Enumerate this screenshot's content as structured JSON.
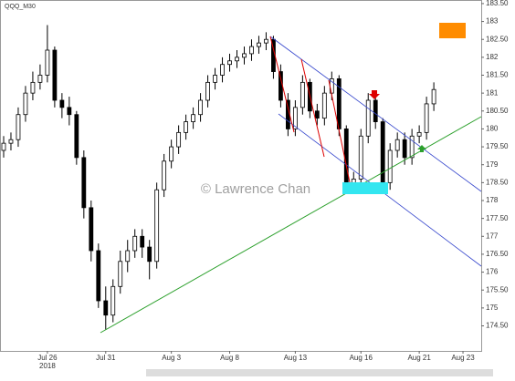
{
  "chart_data": {
    "type": "candlestick",
    "symbol": "QQQ_M30",
    "watermark": "© Lawrence Chan",
    "year_label": "2018",
    "categories": [
      null,
      null,
      null,
      null,
      null,
      null,
      "Jul 26",
      null,
      null,
      null,
      null,
      null,
      null,
      null,
      "Jul 31",
      null,
      null,
      null,
      null,
      null,
      null,
      null,
      null,
      "Aug 3",
      null,
      null,
      null,
      null,
      null,
      null,
      null,
      "Aug 8",
      null,
      null,
      null,
      null,
      null,
      null,
      null,
      null,
      "Aug 13",
      null,
      null,
      null,
      null,
      null,
      null,
      null,
      null,
      "Aug 16",
      null,
      null,
      null,
      null,
      null,
      null,
      null,
      "Aug 21",
      null,
      null,
      null,
      null,
      null,
      "Aug 23",
      null,
      null
    ],
    "open": [
      179.4,
      179.6,
      179.7,
      180.4,
      181.0,
      181.3,
      181.5,
      182.2,
      180.8,
      180.6,
      180.4,
      179.2,
      177.8,
      176.6,
      175.2,
      174.8,
      175.6,
      176.3,
      176.6,
      177.0,
      176.7,
      176.3,
      178.3,
      179.1,
      179.5,
      179.9,
      180.2,
      180.4,
      180.8,
      181.3,
      181.5,
      181.8,
      181.9,
      182.0,
      182.1,
      182.3,
      182.4,
      182.5,
      181.6,
      180.8,
      180.0,
      180.6,
      181.3,
      180.5,
      180.3,
      181.0,
      181.4,
      180.0,
      178.4,
      178.6,
      179.8,
      180.8,
      180.2,
      178.5,
      179.4,
      179.7,
      179.2,
      179.8,
      179.9,
      180.7,
      null,
      null,
      null,
      null,
      null,
      null
    ],
    "high": [
      179.8,
      179.9,
      180.6,
      181.2,
      181.6,
      181.8,
      182.9,
      182.3,
      181.0,
      180.9,
      180.5,
      179.4,
      178.0,
      176.8,
      175.6,
      175.8,
      176.6,
      176.9,
      177.2,
      177.2,
      176.9,
      178.5,
      179.3,
      179.7,
      180.1,
      180.4,
      180.6,
      181.0,
      181.5,
      181.7,
      182.0,
      182.1,
      182.2,
      182.3,
      182.5,
      182.6,
      182.7,
      182.6,
      181.8,
      181.0,
      180.8,
      181.5,
      181.4,
      180.7,
      181.2,
      181.6,
      181.5,
      180.1,
      178.8,
      180.0,
      181.0,
      180.9,
      180.3,
      179.6,
      179.9,
      179.9,
      180.0,
      180.1,
      180.9,
      181.3,
      null,
      null,
      null,
      null,
      null,
      null
    ],
    "low": [
      179.2,
      179.4,
      179.5,
      180.2,
      180.8,
      181.1,
      181.3,
      180.6,
      180.3,
      180.1,
      179.0,
      177.5,
      176.3,
      175.0,
      174.4,
      174.6,
      175.4,
      176.0,
      176.4,
      176.4,
      175.8,
      176.1,
      178.1,
      178.9,
      179.3,
      179.7,
      180.0,
      180.2,
      180.6,
      181.1,
      181.3,
      181.6,
      181.7,
      181.8,
      181.9,
      182.1,
      182.2,
      181.4,
      180.6,
      179.8,
      179.8,
      180.4,
      180.3,
      180.1,
      180.1,
      180.8,
      179.8,
      178.2,
      178.2,
      178.4,
      179.6,
      180.0,
      178.3,
      178.3,
      179.2,
      179.0,
      179.0,
      179.6,
      179.7,
      180.5,
      null,
      null,
      null,
      null,
      null,
      null
    ],
    "close": [
      179.6,
      179.7,
      180.4,
      181.0,
      181.3,
      181.5,
      182.2,
      180.8,
      180.6,
      180.4,
      179.2,
      177.8,
      176.6,
      175.2,
      174.8,
      175.6,
      176.3,
      176.6,
      177.0,
      176.7,
      176.3,
      178.3,
      179.1,
      179.5,
      179.9,
      180.2,
      180.4,
      180.8,
      181.3,
      181.5,
      181.8,
      181.9,
      182.0,
      182.1,
      182.3,
      182.4,
      182.5,
      181.6,
      180.8,
      180.0,
      180.6,
      181.3,
      180.5,
      180.3,
      181.0,
      181.4,
      180.0,
      178.4,
      178.6,
      179.8,
      180.8,
      180.2,
      178.5,
      179.4,
      179.7,
      179.2,
      179.8,
      179.9,
      180.7,
      181.1,
      null,
      null,
      null,
      null,
      null,
      null
    ],
    "up_color": "#ffffff",
    "down_color": "#000000",
    "ylim": [
      173.8,
      183.6
    ],
    "yticks": [
      {
        "value": 174.5,
        "label": "174.50"
      },
      175,
      {
        "value": 175.5,
        "label": "175.50"
      },
      176,
      {
        "value": 176.5,
        "label": "176.50"
      },
      177,
      {
        "value": 177.5,
        "label": "177.50"
      },
      178,
      {
        "value": 178.5,
        "label": "178.50"
      },
      179,
      {
        "value": 179.5,
        "label": "179.50"
      },
      180,
      {
        "value": 180.5,
        "label": "180.50"
      },
      181,
      {
        "value": 181.5,
        "label": "181.50"
      },
      182,
      {
        "value": 182.5,
        "label": "182.50"
      },
      183,
      {
        "value": 183.5,
        "label": "183.50"
      }
    ]
  }
}
